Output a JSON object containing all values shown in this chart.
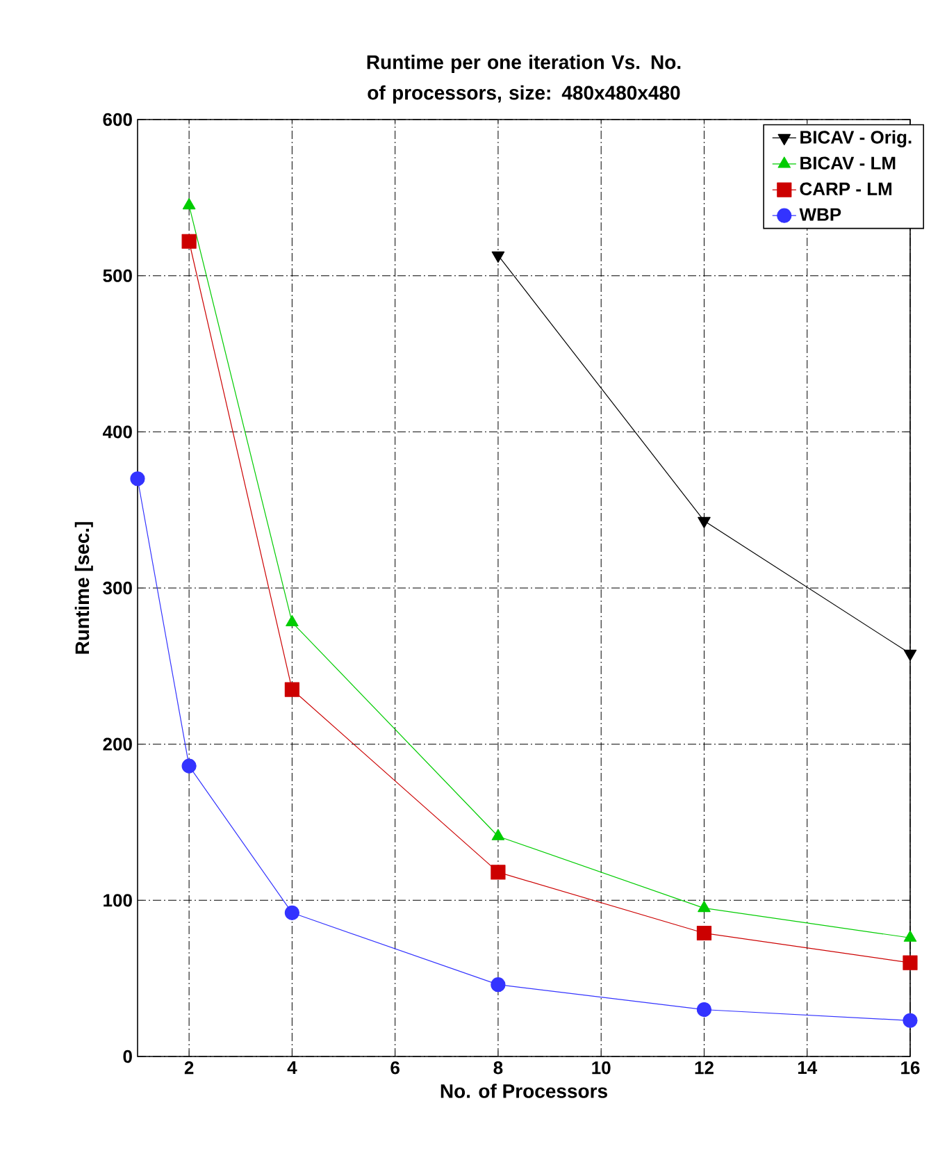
{
  "chart_data": {
    "type": "line",
    "title": "Runtime per one iteration Vs. No. of processors, size: 480x480x480",
    "xlabel": "No. of Processors",
    "ylabel": "Runtime [sec.]",
    "x": [
      1,
      2,
      4,
      8,
      12,
      16
    ],
    "series": [
      {
        "name": "BICAV - Orig.",
        "color": "#000000",
        "marker": "triangle down",
        "values": [
          null,
          null,
          null,
          513,
          343,
          258
        ]
      },
      {
        "name": "BICAV - LM",
        "color": "#00cc00",
        "marker": "triangle",
        "values": [
          null,
          545,
          278,
          141,
          95,
          76
        ]
      },
      {
        "name": "CARP - LM",
        "color": "#cc0000",
        "marker": "square",
        "values": [
          null,
          522,
          235,
          118,
          79,
          60
        ]
      },
      {
        "name": "WBP",
        "color": "#3333ff",
        "marker": "circle",
        "values": [
          370,
          186,
          92,
          46,
          30,
          23
        ]
      }
    ],
    "xlim": [
      1,
      16
    ],
    "xticks": [
      2,
      4,
      6,
      8,
      10,
      12,
      14,
      16
    ],
    "ylim": [
      0,
      600
    ],
    "yticks": [
      0,
      100,
      200,
      300,
      400,
      500,
      600
    ],
    "grid": true,
    "legend": "top right",
    "line_style": "solid"
  }
}
